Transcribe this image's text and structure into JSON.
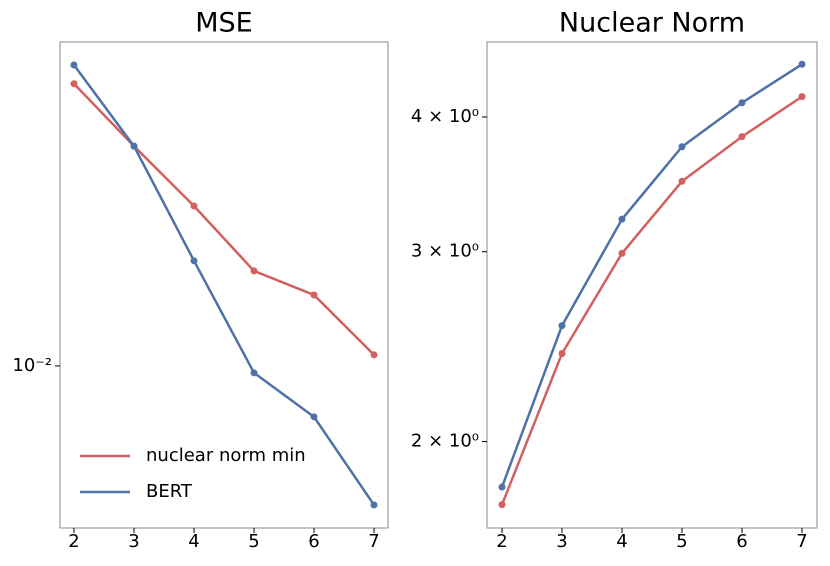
{
  "chart_data": [
    {
      "type": "line",
      "title": "MSE",
      "x": [
        2,
        3,
        4,
        5,
        6,
        7
      ],
      "xlim": [
        1.767,
        7.233
      ],
      "xticks": [
        2,
        3,
        4,
        5,
        6,
        7
      ],
      "ylim": [
        0.00384,
        0.0677
      ],
      "yticks": [
        {
          "value": 0.01,
          "label": "10⁻²"
        }
      ],
      "log_y": true,
      "legend": "lower left",
      "series": [
        {
          "name": "nuclear norm min",
          "color": "#d1605e",
          "values": [
            0.0529,
            0.0366,
            0.0257,
            0.01752,
            0.0152,
            0.01067
          ]
        },
        {
          "name": "BERT",
          "color": "#4e72a8",
          "values": [
            0.0591,
            0.0366,
            0.0186,
            0.0096,
            0.0074,
            0.0044
          ]
        }
      ]
    },
    {
      "type": "line",
      "title": "Nuclear Norm",
      "x": [
        2,
        3,
        4,
        5,
        6,
        7
      ],
      "xlim": [
        1.75,
        7.25
      ],
      "xticks": [
        2,
        3,
        4,
        5,
        6,
        7
      ],
      "ylim": [
        1.663,
        4.695
      ],
      "yticks": [
        {
          "value": 2,
          "label": "2 × 10⁰"
        },
        {
          "value": 3,
          "label": "3 × 10⁰"
        },
        {
          "value": 4,
          "label": "4 × 10⁰"
        }
      ],
      "log_y": true,
      "series": [
        {
          "color": "#d1605e",
          "values": [
            1.748,
            2.414,
            2.99,
            3.487,
            3.836,
            4.178
          ]
        },
        {
          "color": "#4e72a8",
          "values": [
            1.815,
            2.562,
            3.216,
            3.754,
            4.124,
            4.477
          ]
        }
      ]
    }
  ]
}
